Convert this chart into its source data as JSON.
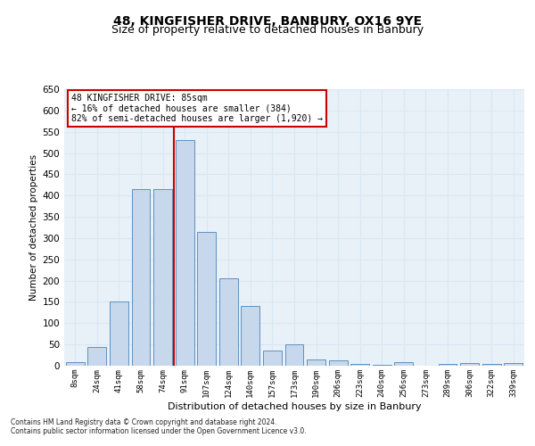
{
  "title": "48, KINGFISHER DRIVE, BANBURY, OX16 9YE",
  "subtitle": "Size of property relative to detached houses in Banbury",
  "xlabel": "Distribution of detached houses by size in Banbury",
  "ylabel": "Number of detached properties",
  "categories": [
    "8sqm",
    "24sqm",
    "41sqm",
    "58sqm",
    "74sqm",
    "91sqm",
    "107sqm",
    "124sqm",
    "140sqm",
    "157sqm",
    "173sqm",
    "190sqm",
    "206sqm",
    "223sqm",
    "240sqm",
    "256sqm",
    "273sqm",
    "289sqm",
    "306sqm",
    "322sqm",
    "339sqm"
  ],
  "values": [
    8,
    45,
    150,
    415,
    415,
    530,
    315,
    205,
    140,
    35,
    50,
    15,
    13,
    5,
    3,
    8,
    0,
    5,
    6,
    5,
    6
  ],
  "bar_color": "#c8d8ec",
  "bar_edge_color": "#6090c0",
  "grid_color": "#d8e8f4",
  "background_color": "#e8f0f8",
  "fig_background": "#ffffff",
  "vline_position": 4.5,
  "vline_color": "#cc0000",
  "annotation_line1": "48 KINGFISHER DRIVE: 85sqm",
  "annotation_line2": "← 16% of detached houses are smaller (384)",
  "annotation_line3": "82% of semi-detached houses are larger (1,920) →",
  "annotation_box_facecolor": "#ffffff",
  "annotation_box_edgecolor": "#cc0000",
  "footnote1": "Contains HM Land Registry data © Crown copyright and database right 2024.",
  "footnote2": "Contains public sector information licensed under the Open Government Licence v3.0.",
  "ylim": [
    0,
    650
  ],
  "yticks": [
    0,
    50,
    100,
    150,
    200,
    250,
    300,
    350,
    400,
    450,
    500,
    550,
    600,
    650
  ],
  "title_fontsize": 10,
  "subtitle_fontsize": 9
}
